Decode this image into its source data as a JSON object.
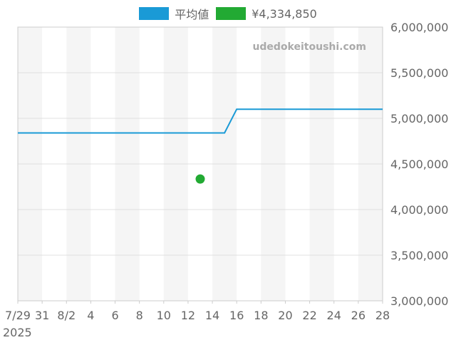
{
  "chart_data": {
    "type": "line",
    "watermark": "udedokeitoushi.com",
    "colors": {
      "average": "#1a9ad6",
      "point": "#22aa33",
      "band": "#f5f5f5",
      "grid": "#e0e0e0",
      "axis_text": "#666666",
      "watermark": "#aaaaaa"
    },
    "legend": [
      {
        "label": "平均値",
        "color": "#1a9ad6"
      },
      {
        "label": "¥4,334,850",
        "color": "#22aa33"
      }
    ],
    "x_start": "2025-07-29",
    "x_end": "2025-08-28",
    "x_ticks": [
      {
        "date": "2025-07-29",
        "label": "7/29"
      },
      {
        "date": "2025-07-31",
        "label": "31"
      },
      {
        "date": "2025-08-02",
        "label": "8/2"
      },
      {
        "date": "2025-08-04",
        "label": "4"
      },
      {
        "date": "2025-08-06",
        "label": "6"
      },
      {
        "date": "2025-08-08",
        "label": "8"
      },
      {
        "date": "2025-08-10",
        "label": "10"
      },
      {
        "date": "2025-08-12",
        "label": "12"
      },
      {
        "date": "2025-08-14",
        "label": "14"
      },
      {
        "date": "2025-08-16",
        "label": "16"
      },
      {
        "date": "2025-08-18",
        "label": "18"
      },
      {
        "date": "2025-08-20",
        "label": "20"
      },
      {
        "date": "2025-08-22",
        "label": "22"
      },
      {
        "date": "2025-08-24",
        "label": "24"
      },
      {
        "date": "2025-08-26",
        "label": "26"
      },
      {
        "date": "2025-08-28",
        "label": "28"
      }
    ],
    "x_year_label": "2025",
    "ylim": [
      3000000,
      6000000
    ],
    "y_ticks": [
      {
        "value": 6000000,
        "label": "6,000,000"
      },
      {
        "value": 5500000,
        "label": "5,500,000"
      },
      {
        "value": 5000000,
        "label": "5,000,000"
      },
      {
        "value": 4500000,
        "label": "4,500,000"
      },
      {
        "value": 4000000,
        "label": "4,000,000"
      },
      {
        "value": 3500000,
        "label": "3,500,000"
      },
      {
        "value": 3000000,
        "label": "3,000,000"
      }
    ],
    "series": [
      {
        "name": "平均値",
        "kind": "line",
        "x": [
          "2025-07-29",
          "2025-08-15",
          "2025-08-16",
          "2025-08-28"
        ],
        "y": [
          4840000,
          4840000,
          5100000,
          5100000
        ]
      },
      {
        "name": "¥4,334,850",
        "kind": "point",
        "x": [
          "2025-08-13"
        ],
        "y": [
          4334850
        ]
      }
    ]
  }
}
